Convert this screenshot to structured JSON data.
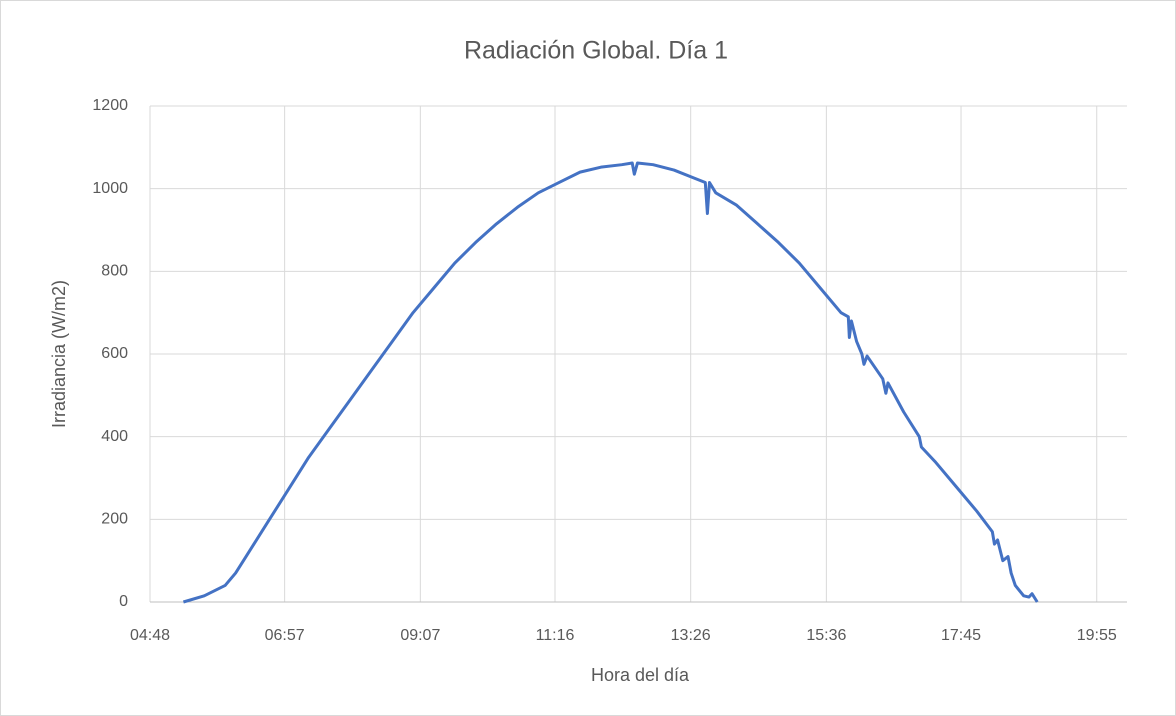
{
  "chart_data": {
    "type": "line",
    "title": "Radiación Global. Día 1",
    "xlabel": "Hora del día",
    "ylabel": "Irradiancia (W/m2)",
    "xlim": [
      "04:48",
      "20:24"
    ],
    "xticks": [
      "04:48",
      "06:57",
      "09:07",
      "11:16",
      "13:26",
      "15:36",
      "17:45",
      "19:55"
    ],
    "ylim": [
      0,
      1200
    ],
    "yticks": [
      0,
      200,
      400,
      600,
      800,
      1000,
      1200
    ],
    "grid": true,
    "series": [
      {
        "color": "#4472c4",
        "x": [
          "05:20",
          "05:40",
          "06:00",
          "06:10",
          "06:20",
          "06:40",
          "07:00",
          "07:20",
          "07:40",
          "08:00",
          "08:20",
          "08:40",
          "09:00",
          "09:20",
          "09:40",
          "10:00",
          "10:20",
          "10:40",
          "11:00",
          "11:20",
          "11:40",
          "12:00",
          "12:20",
          "12:30",
          "12:32",
          "12:35",
          "12:50",
          "13:10",
          "13:30",
          "13:40",
          "13:42",
          "13:44",
          "13:50",
          "14:10",
          "14:30",
          "14:50",
          "15:10",
          "15:30",
          "15:50",
          "15:57",
          "15:58",
          "16:00",
          "16:05",
          "16:10",
          "16:12",
          "16:15",
          "16:30",
          "16:33",
          "16:35",
          "16:50",
          "17:05",
          "17:07",
          "17:20",
          "17:40",
          "18:00",
          "18:15",
          "18:17",
          "18:20",
          "18:25",
          "18:30",
          "18:33",
          "18:37",
          "18:45",
          "18:50",
          "18:53",
          "18:58"
        ],
        "values": [
          0,
          15,
          40,
          70,
          110,
          190,
          270,
          350,
          420,
          490,
          560,
          630,
          700,
          760,
          820,
          870,
          915,
          955,
          990,
          1015,
          1040,
          1052,
          1058,
          1062,
          1035,
          1062,
          1058,
          1045,
          1025,
          1015,
          940,
          1015,
          990,
          960,
          915,
          870,
          820,
          760,
          700,
          690,
          640,
          680,
          630,
          600,
          575,
          595,
          540,
          505,
          530,
          460,
          400,
          375,
          340,
          280,
          220,
          170,
          140,
          150,
          100,
          110,
          70,
          40,
          15,
          12,
          20,
          0
        ]
      }
    ]
  }
}
